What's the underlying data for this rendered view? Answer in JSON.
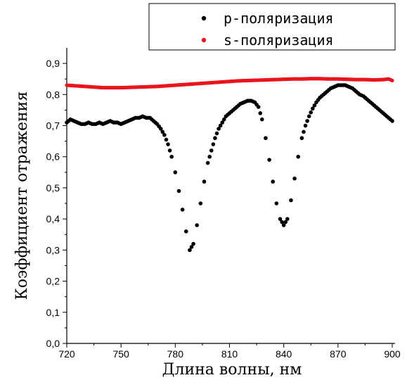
{
  "chart_data": {
    "type": "scatter",
    "xlabel": "Длина волны, нм",
    "ylabel": "Коэффициент отражения",
    "xlim": [
      720,
      900
    ],
    "ylim": [
      0.0,
      0.95
    ],
    "x_ticks": [
      720,
      750,
      780,
      810,
      840,
      870,
      900
    ],
    "x_tick_labels": [
      "720",
      "750",
      "780",
      "810",
      "840",
      "870",
      "900"
    ],
    "y_ticks": [
      0.0,
      0.1,
      0.2,
      0.3,
      0.4,
      0.5,
      0.6,
      0.7,
      0.8,
      0.9
    ],
    "y_tick_labels": [
      "0,0",
      "0,1",
      "0,2",
      "0,3",
      "0,4",
      "0,5",
      "0,6",
      "0,7",
      "0,8",
      "0,9"
    ],
    "grid": false,
    "legend_position": "top-right",
    "series": [
      {
        "name": "p-поляризация",
        "color": "#000000",
        "points": [
          [
            720,
            0.71
          ],
          [
            722,
            0.72
          ],
          [
            724,
            0.715
          ],
          [
            726,
            0.71
          ],
          [
            728,
            0.705
          ],
          [
            730,
            0.705
          ],
          [
            732,
            0.71
          ],
          [
            734,
            0.705
          ],
          [
            736,
            0.705
          ],
          [
            738,
            0.71
          ],
          [
            740,
            0.705
          ],
          [
            742,
            0.71
          ],
          [
            744,
            0.715
          ],
          [
            746,
            0.71
          ],
          [
            748,
            0.71
          ],
          [
            750,
            0.705
          ],
          [
            752,
            0.71
          ],
          [
            754,
            0.715
          ],
          [
            756,
            0.72
          ],
          [
            758,
            0.725
          ],
          [
            760,
            0.725
          ],
          [
            762,
            0.73
          ],
          [
            764,
            0.725
          ],
          [
            766,
            0.725
          ],
          [
            768,
            0.715
          ],
          [
            770,
            0.705
          ],
          [
            772,
            0.69
          ],
          [
            774,
            0.67
          ],
          [
            776,
            0.64
          ],
          [
            778,
            0.6
          ],
          [
            780,
            0.55
          ],
          [
            782,
            0.49
          ],
          [
            784,
            0.43
          ],
          [
            786,
            0.36
          ],
          [
            788,
            0.3
          ],
          [
            790,
            0.32
          ],
          [
            792,
            0.38
          ],
          [
            794,
            0.45
          ],
          [
            796,
            0.52
          ],
          [
            798,
            0.58
          ],
          [
            800,
            0.62
          ],
          [
            802,
            0.66
          ],
          [
            804,
            0.69
          ],
          [
            806,
            0.71
          ],
          [
            808,
            0.73
          ],
          [
            810,
            0.74
          ],
          [
            812,
            0.75
          ],
          [
            814,
            0.76
          ],
          [
            816,
            0.77
          ],
          [
            818,
            0.775
          ],
          [
            820,
            0.78
          ],
          [
            822,
            0.78
          ],
          [
            824,
            0.775
          ],
          [
            826,
            0.76
          ],
          [
            828,
            0.72
          ],
          [
            830,
            0.66
          ],
          [
            832,
            0.59
          ],
          [
            834,
            0.52
          ],
          [
            836,
            0.45
          ],
          [
            838,
            0.4
          ],
          [
            840,
            0.38
          ],
          [
            842,
            0.4
          ],
          [
            844,
            0.46
          ],
          [
            846,
            0.53
          ],
          [
            848,
            0.6
          ],
          [
            850,
            0.66
          ],
          [
            852,
            0.7
          ],
          [
            854,
            0.73
          ],
          [
            856,
            0.755
          ],
          [
            858,
            0.775
          ],
          [
            860,
            0.79
          ],
          [
            862,
            0.8
          ],
          [
            864,
            0.81
          ],
          [
            866,
            0.82
          ],
          [
            868,
            0.825
          ],
          [
            870,
            0.83
          ],
          [
            872,
            0.83
          ],
          [
            874,
            0.83
          ],
          [
            876,
            0.825
          ],
          [
            878,
            0.82
          ],
          [
            880,
            0.81
          ],
          [
            882,
            0.8
          ],
          [
            884,
            0.795
          ],
          [
            886,
            0.785
          ],
          [
            888,
            0.775
          ],
          [
            890,
            0.765
          ],
          [
            892,
            0.755
          ],
          [
            894,
            0.745
          ],
          [
            896,
            0.735
          ],
          [
            898,
            0.725
          ],
          [
            900,
            0.715
          ]
        ]
      },
      {
        "name": "s-поляризация",
        "color": "#e8141e",
        "points": [
          [
            720,
            0.83
          ],
          [
            725,
            0.828
          ],
          [
            730,
            0.826
          ],
          [
            735,
            0.824
          ],
          [
            740,
            0.822
          ],
          [
            745,
            0.822
          ],
          [
            750,
            0.822
          ],
          [
            755,
            0.823
          ],
          [
            760,
            0.824
          ],
          [
            765,
            0.825
          ],
          [
            770,
            0.826
          ],
          [
            775,
            0.828
          ],
          [
            780,
            0.83
          ],
          [
            785,
            0.832
          ],
          [
            790,
            0.834
          ],
          [
            795,
            0.836
          ],
          [
            800,
            0.838
          ],
          [
            805,
            0.84
          ],
          [
            810,
            0.842
          ],
          [
            815,
            0.844
          ],
          [
            820,
            0.845
          ],
          [
            825,
            0.846
          ],
          [
            830,
            0.847
          ],
          [
            835,
            0.848
          ],
          [
            840,
            0.849
          ],
          [
            845,
            0.85
          ],
          [
            850,
            0.85
          ],
          [
            855,
            0.851
          ],
          [
            860,
            0.851
          ],
          [
            865,
            0.85
          ],
          [
            870,
            0.85
          ],
          [
            875,
            0.849
          ],
          [
            880,
            0.848
          ],
          [
            885,
            0.848
          ],
          [
            890,
            0.847
          ],
          [
            895,
            0.848
          ],
          [
            898,
            0.85
          ],
          [
            900,
            0.845
          ]
        ]
      }
    ]
  }
}
